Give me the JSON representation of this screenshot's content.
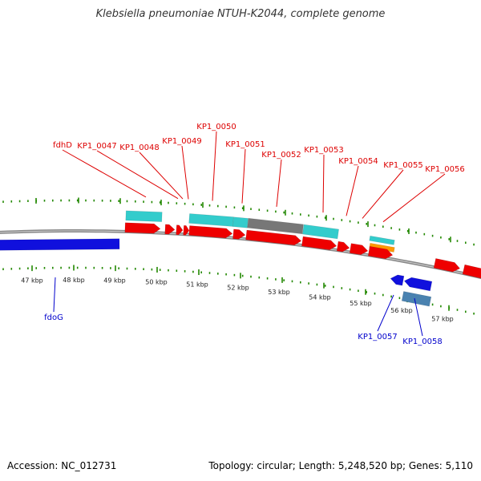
{
  "title": "Klebsiella pneumoniae NTUH-K2044, complete genome",
  "footer": {
    "accession": "Accession: NC_012731",
    "summary": "Topology: circular; Length: 5,248,520 bp; Genes: 5,110"
  },
  "colors": {
    "forward_label": "#dd0000",
    "reverse_label": "#0000cc",
    "forward_gene": "#ee0000",
    "reverse_gene": "#1010dd",
    "tick": "#228800",
    "backbone": "#888888",
    "cyan_feature": "#33cccc",
    "gray_feature": "#777777",
    "orange_feature": "#ff9900",
    "steel_feature": "#4a82b0"
  },
  "scale": {
    "unit": "kbp",
    "labels": [
      "47 kbp",
      "48 kbp",
      "49 kbp",
      "50 kbp",
      "51 kbp",
      "52 kbp",
      "53 kbp",
      "54 kbp",
      "55 kbp",
      "56 kbp",
      "57 kbp"
    ]
  },
  "forward_labels": [
    "fdhD",
    "KP1_0047",
    "KP1_0048",
    "KP1_0049",
    "KP1_0050",
    "KP1_0051",
    "KP1_0052",
    "KP1_0053",
    "KP1_0054",
    "KP1_0055",
    "KP1_0056"
  ],
  "reverse_labels": [
    "fdoG",
    "KP1_0057",
    "KP1_0058"
  ]
}
